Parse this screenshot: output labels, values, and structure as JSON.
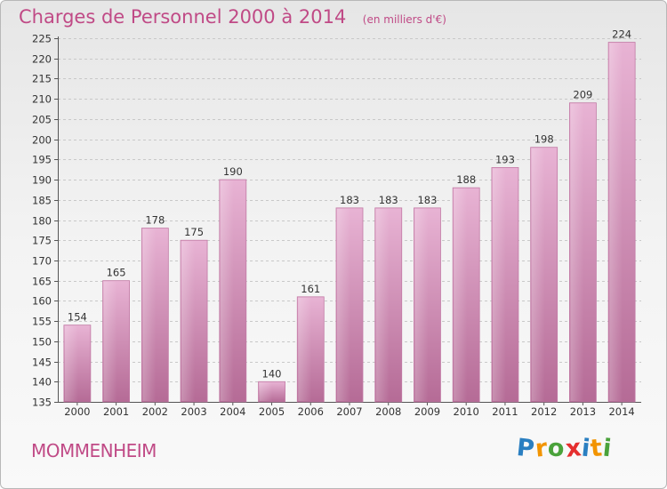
{
  "header": {
    "title": "Charges de Personnel 2000 à 2014",
    "subtitle": "(en milliers d'€)"
  },
  "commune": "MOMMENHEIM",
  "logo": {
    "text": "Proxiti",
    "letters": [
      {
        "char": "P",
        "color": "#2a7fc1"
      },
      {
        "char": "r",
        "color": "#f29400"
      },
      {
        "char": "o",
        "color": "#4aa23b"
      },
      {
        "char": "x",
        "color": "#e52e2e"
      },
      {
        "char": "i",
        "color": "#2a7fc1"
      },
      {
        "char": "t",
        "color": "#f29400"
      },
      {
        "char": "i",
        "color": "#4aa23b"
      }
    ]
  },
  "chart_data": {
    "type": "bar",
    "categories": [
      "2000",
      "2001",
      "2002",
      "2003",
      "2004",
      "2005",
      "2006",
      "2007",
      "2008",
      "2009",
      "2010",
      "2011",
      "2012",
      "2013",
      "2014"
    ],
    "values": [
      154,
      165,
      178,
      175,
      190,
      140,
      161,
      183,
      183,
      183,
      188,
      193,
      198,
      209,
      224
    ],
    "ylim": [
      135,
      225
    ],
    "yticks": [
      135,
      140,
      145,
      150,
      155,
      160,
      165,
      170,
      175,
      180,
      185,
      190,
      195,
      200,
      205,
      210,
      215,
      220,
      225
    ],
    "grid": "horizontal dashed",
    "bar_color": "#dea0c8",
    "bar_color_dark": "#b56b96",
    "text_color": "#c04a86"
  }
}
